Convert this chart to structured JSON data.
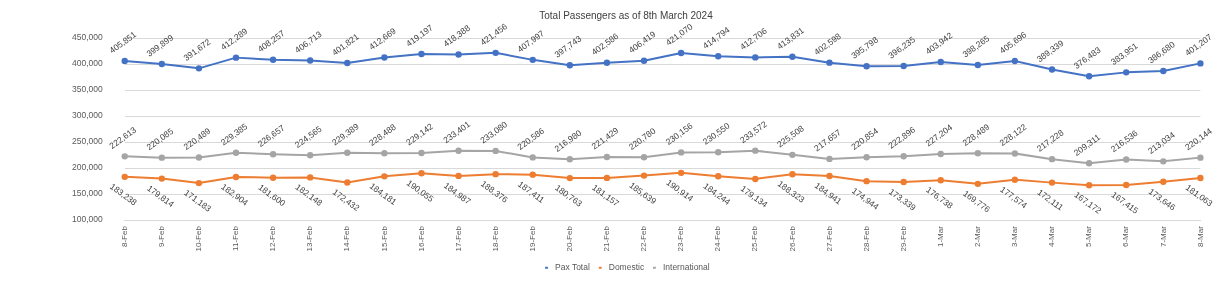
{
  "chart_data": {
    "type": "line",
    "title": "Total Passengers as of 8th March 2024",
    "categories": [
      "8-Feb",
      "9-Feb",
      "10-Feb",
      "11-Feb",
      "12-Feb",
      "13-Feb",
      "14-Feb",
      "15-Feb",
      "16-Feb",
      "17-Feb",
      "18-Feb",
      "19-Feb",
      "20-Feb",
      "21-Feb",
      "22-Feb",
      "23-Feb",
      "24-Feb",
      "25-Feb",
      "26-Feb",
      "27-Feb",
      "28-Feb",
      "29-Feb",
      "1-Mar",
      "2-Mar",
      "3-Mar",
      "4-Mar",
      "5-Mar",
      "6-Mar",
      "7-Mar",
      "8-Mar"
    ],
    "series": [
      {
        "name": "Pax Total",
        "color": "#4472c4",
        "values": [
          405851,
          399899,
          391672,
          412289,
          408257,
          406713,
          401821,
          412669,
          419197,
          418388,
          421456,
          407997,
          397743,
          402586,
          406419,
          421070,
          414794,
          412706,
          413831,
          402598,
          395798,
          396235,
          403942,
          398265,
          405696,
          389339,
          376483,
          383951,
          386680,
          401207
        ],
        "value_labels": [
          "405,851",
          "399,899",
          "391,672",
          "412,289",
          "408,257",
          "406,713",
          "401,821",
          "412,669",
          "419,197",
          "418,388",
          "421,456",
          "407,997",
          "397,743",
          "402,586",
          "406,419",
          "421,070",
          "414,794",
          "412,706",
          "413,831",
          "402,598",
          "395,798",
          "396,235",
          "403,942",
          "398,265",
          "405,696",
          "389,339",
          "376,483",
          "383,951",
          "386,680",
          "401,207"
        ]
      },
      {
        "name": "Domestic",
        "color": "#ed7d31",
        "values": [
          183238,
          179814,
          171183,
          182904,
          181600,
          182148,
          172432,
          184181,
          190055,
          184987,
          188376,
          187411,
          180763,
          181157,
          185639,
          190914,
          184244,
          179134,
          188323,
          184941,
          174944,
          173339,
          176738,
          169776,
          177574,
          172111,
          167172,
          167415,
          173646,
          181063
        ],
        "value_labels": [
          "183,238",
          "179,814",
          "171,183",
          "182,904",
          "181,600",
          "182,148",
          "172,432",
          "184,181",
          "190,055",
          "184,987",
          "188,376",
          "187,411",
          "180,763",
          "181,157",
          "185,639",
          "190,914",
          "184,244",
          "179,134",
          "188,323",
          "184,941",
          "174,944",
          "173,339",
          "176,738",
          "169,776",
          "177,574",
          "172,111",
          "167,172",
          "167,415",
          "173,646",
          "181,063"
        ]
      },
      {
        "name": "International",
        "color": "#a5a5a5",
        "values": [
          222613,
          220085,
          220489,
          229385,
          226657,
          224565,
          229389,
          228488,
          229142,
          233401,
          233080,
          220586,
          216980,
          221429,
          220780,
          230156,
          230550,
          233572,
          225508,
          217657,
          220854,
          222896,
          227204,
          228489,
          228122,
          217228,
          209311,
          216536,
          213034,
          220144
        ],
        "value_labels": [
          "222,613",
          "220,085",
          "220,489",
          "229,385",
          "226,657",
          "224,565",
          "229,389",
          "228,488",
          "229,142",
          "233,401",
          "233,080",
          "220,586",
          "216,980",
          "221,429",
          "220,780",
          "230,156",
          "230,550",
          "233,572",
          "225,508",
          "217,657",
          "220,854",
          "222,896",
          "227,204",
          "228,489",
          "228,122",
          "217,228",
          "209,311",
          "216,536",
          "213,034",
          "220,144"
        ]
      }
    ],
    "ylim": [
      100000,
      450000
    ],
    "yticks": [
      {
        "value": 100000,
        "label": "100,000"
      },
      {
        "value": 150000,
        "label": "150,000"
      },
      {
        "value": 200000,
        "label": "200,000"
      },
      {
        "value": 250000,
        "label": "250,000"
      },
      {
        "value": 300000,
        "label": "300,000"
      },
      {
        "value": 350000,
        "label": "350,000"
      },
      {
        "value": 400000,
        "label": "400,000"
      },
      {
        "value": 450000,
        "label": "450,000"
      }
    ],
    "grid": "y",
    "legend": "bottom",
    "marker": "circle",
    "line_style": "solid"
  }
}
